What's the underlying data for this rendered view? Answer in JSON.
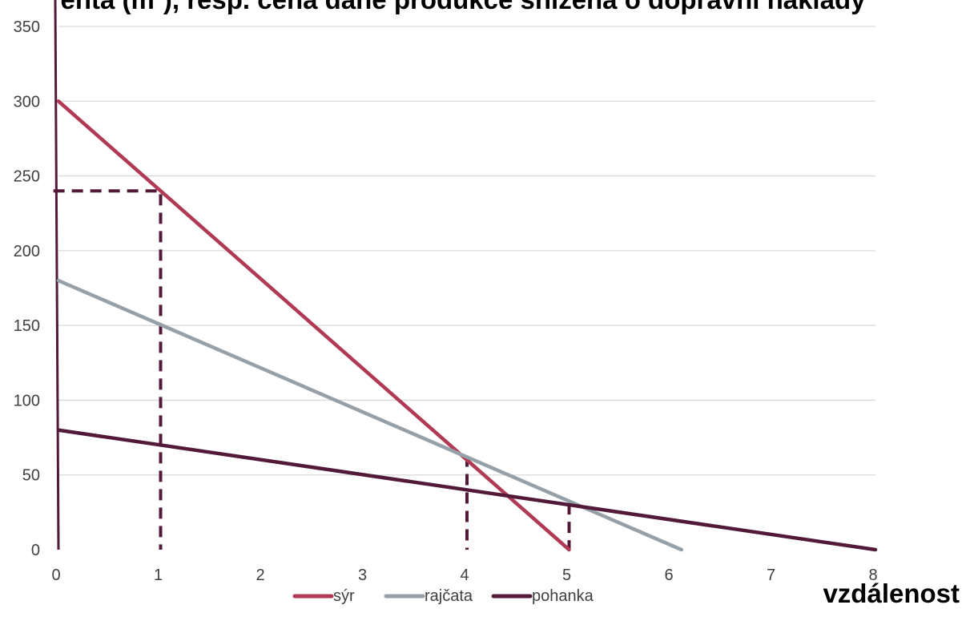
{
  "chart_data": {
    "type": "line",
    "title": "enta (m²), resp. cena dané produkce snížená o dopravní náklady",
    "xlabel": "vzdálenost",
    "ylabel": "",
    "x_ticks": [
      0,
      1,
      2,
      3,
      4,
      5,
      6,
      7,
      8
    ],
    "y_ticks": [
      0,
      50,
      100,
      150,
      200,
      250,
      300,
      350
    ],
    "xlim": [
      0,
      8
    ],
    "ylim": [
      0,
      350
    ],
    "grid": "horizontal",
    "legend_position": "bottom",
    "series": [
      {
        "name": "sýr",
        "color": "#b03a53",
        "points": [
          [
            0,
            300
          ],
          [
            5,
            0
          ]
        ]
      },
      {
        "name": "rajčata",
        "color": "#96a0a8",
        "points": [
          [
            0,
            180
          ],
          [
            6.1,
            0
          ]
        ]
      },
      {
        "name": "pohanka",
        "color": "#521a38",
        "points": [
          [
            0,
            80
          ],
          [
            8,
            0
          ]
        ]
      }
    ],
    "guide_lines": {
      "color": "#521a38",
      "segments": [
        {
          "points": [
            [
              -0.05,
              240
            ],
            [
              1,
              240
            ],
            [
              1,
              0
            ]
          ]
        },
        {
          "points": [
            [
              4,
              63
            ],
            [
              4,
              0
            ]
          ]
        },
        {
          "points": [
            [
              5,
              31
            ],
            [
              5,
              0
            ]
          ]
        }
      ]
    }
  }
}
